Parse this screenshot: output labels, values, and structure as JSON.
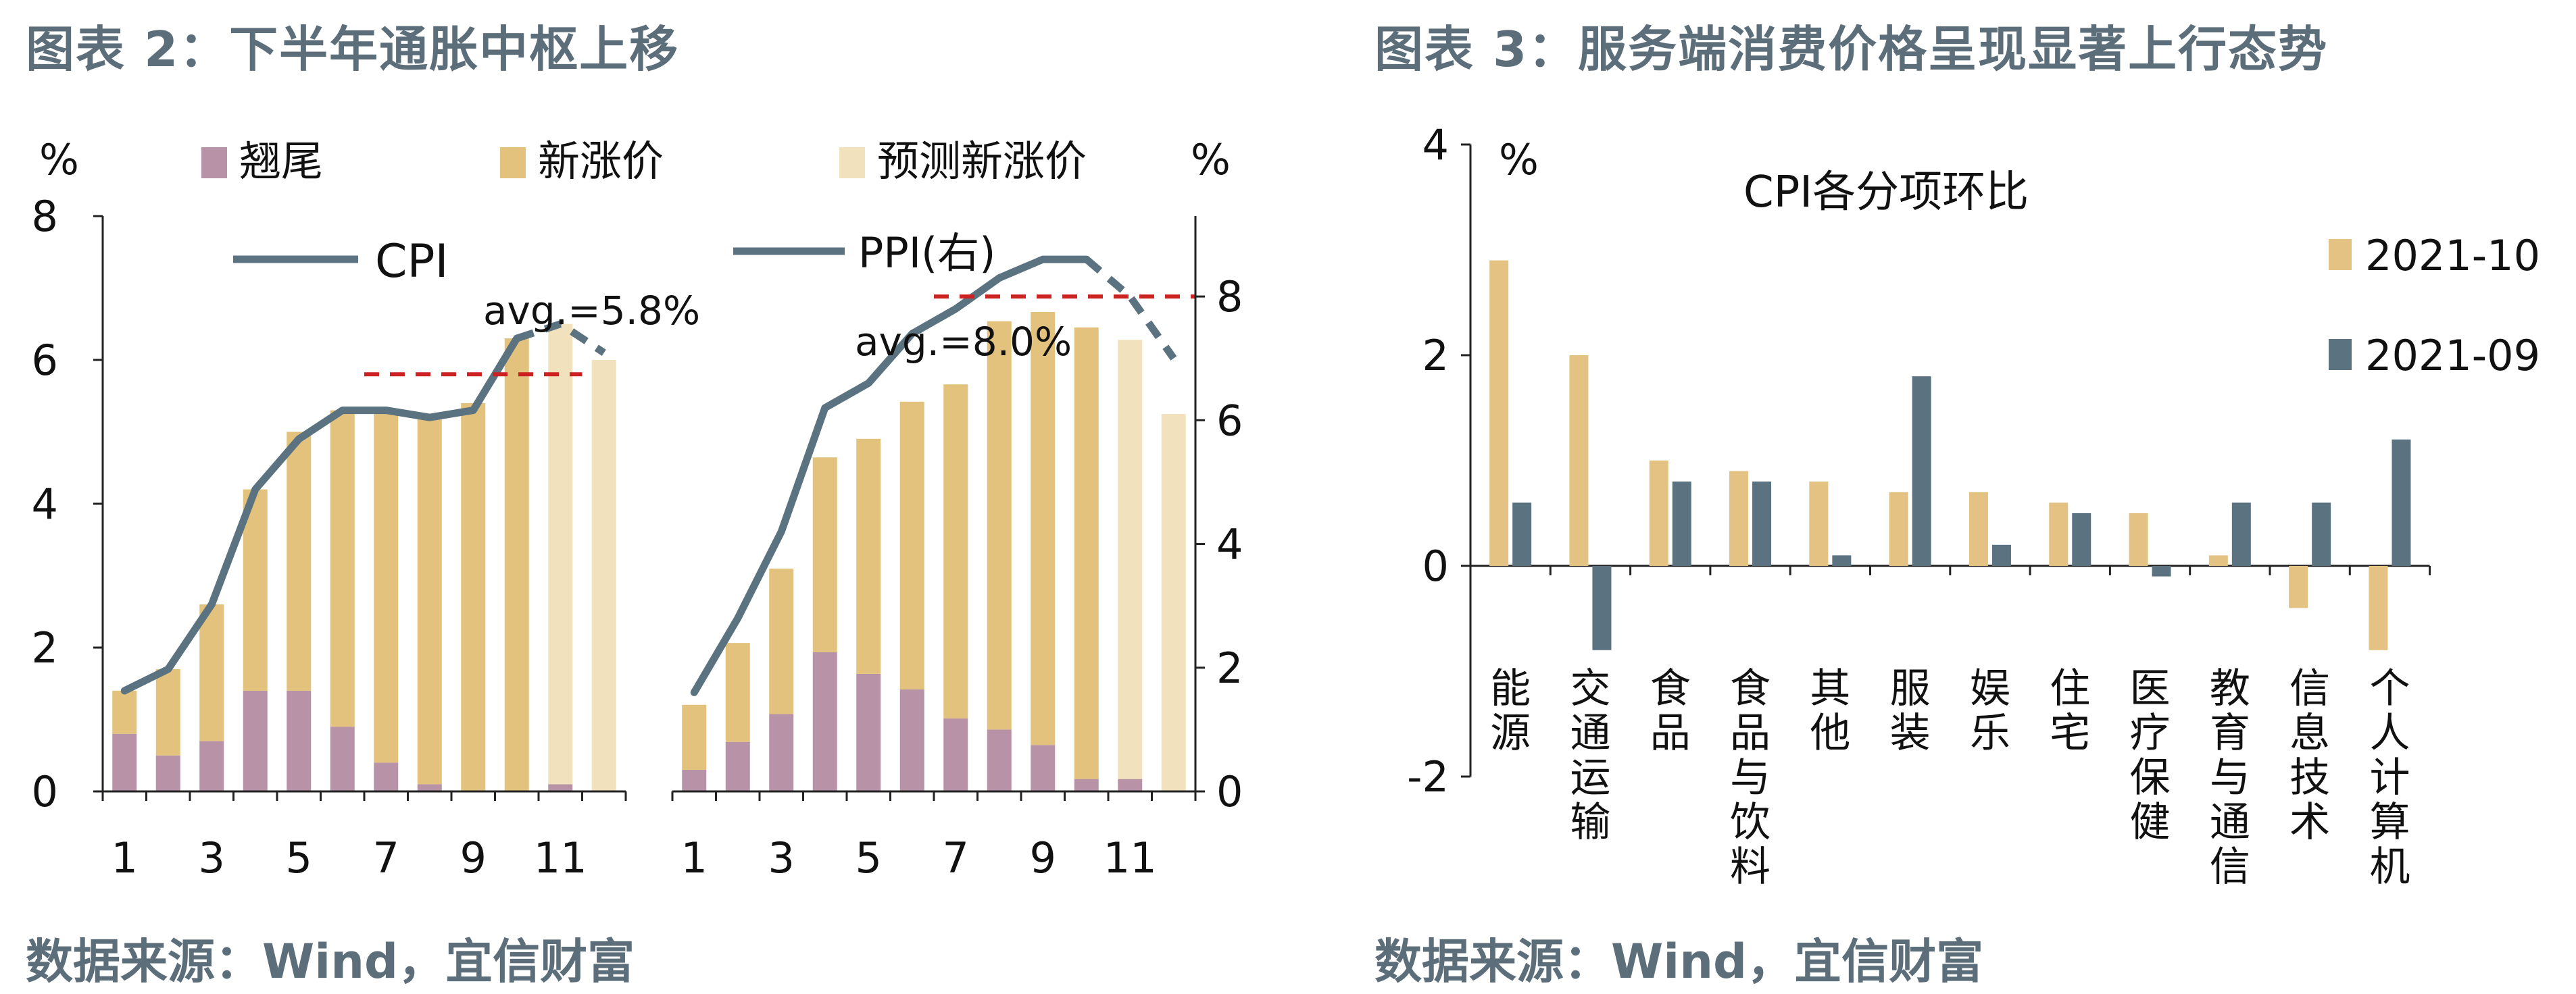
{
  "figure_left": {
    "title": "图表 2：下半年通胀中枢上移",
    "source": "数据来源：Wind，宜信财富"
  },
  "figure_right": {
    "title": "图表 3：服务端消费价格呈现显著上行态势",
    "source": "数据来源：Wind，宜信财富"
  },
  "colors": {
    "tail": "#b892a6",
    "new": "#e2c27c",
    "forecast": "#f1e2bd",
    "line": "#5b7380",
    "avg": "#cc2222",
    "oct": "#e3c283",
    "sep": "#5b7380",
    "title": "#5c6e7a"
  },
  "chart_data": [
    {
      "type": "bar",
      "id": "cpi",
      "stacked": true,
      "categories": [
        "1",
        "2",
        "3",
        "4",
        "5",
        "6",
        "7",
        "8",
        "9",
        "10",
        "11",
        "12"
      ],
      "xtick_labels": [
        "1",
        "3",
        "5",
        "7",
        "9",
        "11"
      ],
      "y_unit": "%",
      "ylim": [
        0,
        8
      ],
      "yticks": [
        0,
        2,
        4,
        6,
        8
      ],
      "series": [
        {
          "name": "翘尾",
          "values": [
            0.8,
            0.5,
            0.7,
            1.4,
            1.4,
            0.9,
            0.4,
            0.1,
            0,
            0,
            0.1,
            0
          ]
        },
        {
          "name": "新涨价",
          "values": [
            0.6,
            1.2,
            1.9,
            2.8,
            3.6,
            4.4,
            4.9,
            5.1,
            5.4,
            6.3,
            0,
            0
          ]
        },
        {
          "name": "预测新涨价",
          "values": [
            0,
            0,
            0,
            0,
            0,
            0,
            0,
            0,
            0,
            0,
            6.4,
            6.0
          ]
        }
      ],
      "line": {
        "name": "CPI",
        "values": [
          1.4,
          1.7,
          2.6,
          4.2,
          4.9,
          5.3,
          5.3,
          5.2,
          5.3,
          6.3,
          6.5,
          6.1
        ]
      },
      "forecast_line_from": 10,
      "avg": {
        "label": "avg.=5.8%",
        "value": 5.8,
        "from": 7,
        "to": 11
      }
    },
    {
      "type": "bar",
      "id": "ppi",
      "stacked": true,
      "categories": [
        "1",
        "2",
        "3",
        "4",
        "5",
        "6",
        "7",
        "8",
        "9",
        "10",
        "11",
        "12"
      ],
      "xtick_labels": [
        "1",
        "3",
        "5",
        "7",
        "9",
        "11"
      ],
      "y_unit": "%",
      "ylim": [
        0,
        9.3
      ],
      "yticks": [
        0,
        2,
        4,
        6,
        8
      ],
      "series": [
        {
          "name": "翘尾",
          "values": [
            0.35,
            0.8,
            1.25,
            2.25,
            1.9,
            1.65,
            1.18,
            1.0,
            0.75,
            0.2,
            0.2,
            0
          ]
        },
        {
          "name": "新涨价",
          "values": [
            1.05,
            1.6,
            2.35,
            3.15,
            3.8,
            4.65,
            5.4,
            6.6,
            7.0,
            7.3,
            0,
            0
          ]
        },
        {
          "name": "预测新涨价",
          "values": [
            0,
            0,
            0,
            0,
            0,
            0,
            0,
            0,
            0,
            0,
            7.1,
            6.1
          ]
        }
      ],
      "line": {
        "name": "PPI(右)",
        "values": [
          1.6,
          2.8,
          4.2,
          6.2,
          6.6,
          7.4,
          7.8,
          8.3,
          8.6,
          8.6,
          8.0,
          7.0
        ]
      },
      "forecast_line_from": 10,
      "avg": {
        "label": "avg.=8.0%",
        "value": 8.0,
        "from": 7,
        "to": 12
      }
    },
    {
      "type": "bar",
      "id": "cpi_mom",
      "title": "CPI各分项环比",
      "y_unit": "%",
      "ylim": [
        -2,
        4
      ],
      "yticks": [
        -2,
        0,
        2,
        4
      ],
      "legend_position": "right",
      "categories": [
        "能源",
        "交通运输",
        "食品",
        "食品与饮料",
        "其他",
        "服装",
        "娱乐",
        "住宅",
        "医疗保健",
        "教育与通信",
        "信息技术",
        "个人计算机"
      ],
      "series": [
        {
          "name": "2021-10",
          "values": [
            2.9,
            2.0,
            1.0,
            0.9,
            0.8,
            0.7,
            0.7,
            0.6,
            0.5,
            0.1,
            -0.4,
            -0.8
          ]
        },
        {
          "name": "2021-09",
          "values": [
            0.6,
            -0.8,
            0.8,
            0.8,
            0.1,
            1.8,
            0.2,
            0.5,
            -0.1,
            0.6,
            0.6,
            1.2
          ]
        }
      ]
    }
  ]
}
